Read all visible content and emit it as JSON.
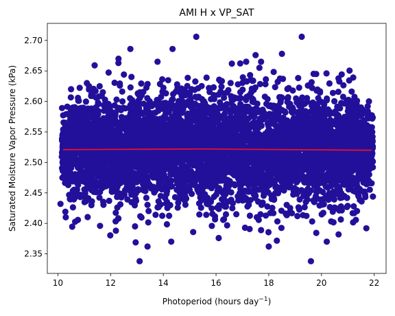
{
  "chart_data": {
    "type": "scatter",
    "title": "AMI H x VP_SAT",
    "xlabel": "Photoperiod (hours day",
    "xlabel_sup": "−1",
    "xlabel_end": ")",
    "ylabel": "Saturated Moisture Vapor Pressure (kPa)",
    "xlim": [
      9.6,
      22.45
    ],
    "ylim": [
      2.318,
      2.728
    ],
    "xticks": [
      10,
      12,
      14,
      16,
      18,
      20,
      22
    ],
    "xtick_labels": [
      "10",
      "12",
      "14",
      "16",
      "18",
      "20",
      "22"
    ],
    "yticks": [
      2.35,
      2.4,
      2.45,
      2.5,
      2.55,
      2.6,
      2.65,
      2.7
    ],
    "ytick_labels": [
      "2.35",
      "2.40",
      "2.45",
      "2.50",
      "2.55",
      "2.60",
      "2.65",
      "2.70"
    ],
    "grid": false,
    "legend": "none",
    "point_color": "#23109a",
    "line_color": "#e8102a",
    "point_count": 5000,
    "x_range": [
      10.15,
      21.95
    ],
    "y_center": 2.521,
    "y_spread_sd": 0.045,
    "trend_line": {
      "x": [
        10.2,
        15.5,
        21.9
      ],
      "y": [
        2.521,
        2.522,
        2.52
      ]
    },
    "outliers": [
      {
        "x": 15.25,
        "y": 2.706
      },
      {
        "x": 19.25,
        "y": 2.706
      },
      {
        "x": 12.75,
        "y": 2.686
      },
      {
        "x": 14.35,
        "y": 2.686
      },
      {
        "x": 17.5,
        "y": 2.676
      },
      {
        "x": 18.5,
        "y": 2.678
      },
      {
        "x": 12.3,
        "y": 2.67
      },
      {
        "x": 13.1,
        "y": 2.338
      },
      {
        "x": 19.6,
        "y": 2.338
      },
      {
        "x": 13.4,
        "y": 2.362
      },
      {
        "x": 18.0,
        "y": 2.362
      },
      {
        "x": 20.2,
        "y": 2.37
      },
      {
        "x": 14.3,
        "y": 2.37
      },
      {
        "x": 16.1,
        "y": 2.376
      },
      {
        "x": 10.3,
        "y": 2.41
      },
      {
        "x": 10.1,
        "y": 2.432
      },
      {
        "x": 21.95,
        "y": 2.444
      },
      {
        "x": 21.7,
        "y": 2.392
      },
      {
        "x": 12.2,
        "y": 2.388
      },
      {
        "x": 11.6,
        "y": 2.396
      },
      {
        "x": 21.5,
        "y": 2.59
      },
      {
        "x": 10.5,
        "y": 2.62
      },
      {
        "x": 21.8,
        "y": 2.6
      },
      {
        "x": 19.8,
        "y": 2.645
      },
      {
        "x": 11.1,
        "y": 2.63
      },
      {
        "x": 16.6,
        "y": 2.662
      }
    ]
  }
}
